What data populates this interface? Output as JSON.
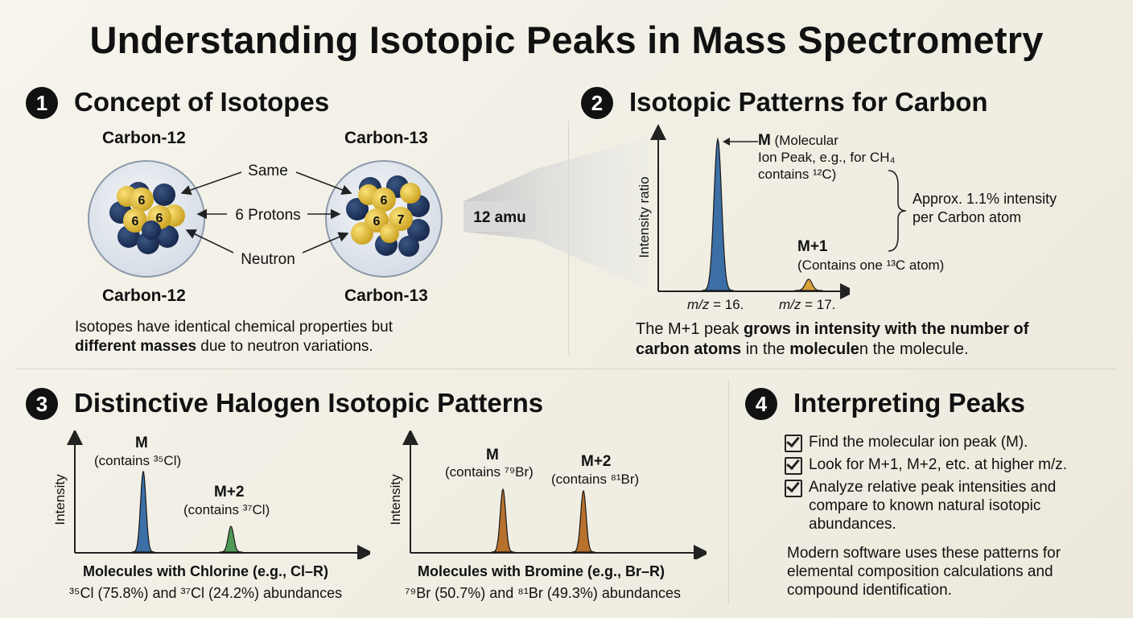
{
  "title": "Understanding Isotopic Peaks in Mass Spectrometry",
  "sections": {
    "concept": {
      "number": "1",
      "title": "Concept of Isotopes",
      "atom_left_top": "Carbon-12",
      "atom_right_top": "Carbon-13",
      "atom_left_bottom": "Carbon-12",
      "atom_right_bottom": "Carbon-13",
      "label_same": "Same",
      "label_protons": "6 Protons",
      "label_neutron": "Neutron",
      "nucleus_left": [
        "6",
        "6",
        "6"
      ],
      "nucleus_right": [
        "6",
        "6",
        "7"
      ],
      "caption_line1": "Isotopes have identical chemical properties but",
      "caption_bold": "different masses",
      "caption_line2_rest": " due to neutron variations."
    },
    "carbon": {
      "number": "2",
      "title": "Isotopic Patterns for Carbon",
      "zoom_label": "12 amu",
      "ylabel": "Intensity ratio",
      "m_label": "M",
      "m_desc1": " (Molecular",
      "m_desc2": "Ion Peak, e.g., for CH₄",
      "m_desc3": "contains ¹²C)",
      "approx1": "Approx. 1.1% intensity",
      "approx2": "per Carbon atom",
      "m1_label": "M+1",
      "m1_desc": "(Contains one ¹³C atom)",
      "tick1_mz": "m/z",
      "tick1_val": " = 16.",
      "tick2_mz": "m/z",
      "tick2_val": " = 17.",
      "caption_a": "The M+1 peak ",
      "caption_b": "grows in intensity with the number of",
      "caption_c": "carbon atoms",
      "caption_d": " in the ",
      "caption_e": "molecule",
      "caption_f": "n the molecule."
    },
    "halogen": {
      "number": "3",
      "title": "Distinctive Halogen Isotopic Patterns",
      "chlorine": {
        "ylabel": "Intensity",
        "m_label": "M",
        "m_desc": "(contains ³⁵Cl)",
        "m2_label": "M+2",
        "m2_desc": "(contains ³⁷Cl)",
        "caption_bold": "Molecules with Chlorine (e.g., Cl–R)",
        "caption": "³⁵Cl (75.8%) and ³⁷Cl (24.2%) abundances"
      },
      "bromine": {
        "ylabel": "Intensity",
        "m_label": "M",
        "m_desc": "(contains ⁷⁹Br)",
        "m2_label": "M+2",
        "m2_desc": "(contains ⁸¹Br)",
        "caption_bold": "Molecules with Bromine (e.g., Br–R)",
        "caption": "⁷⁹Br (50.7%) and ⁸¹Br (49.3%) abundances"
      }
    },
    "interpreting": {
      "number": "4",
      "title": "Interpreting Peaks",
      "items": [
        "Find the molecular ion peak (M).",
        "Look for M+1, M+2, etc. at higher m/z.",
        "Analyze relative peak intensities and compare to known natural isotopic abundances."
      ],
      "footer": "Modern software uses these patterns for elemental composition calculations and compound identification."
    }
  },
  "colors": {
    "proton": "#e9c43a",
    "neutron": "#23395f",
    "blue_peak": "#3b6fa6",
    "green_peak": "#4f9a55",
    "orange_peak": "#b8702d",
    "gold_peak": "#d8a23a"
  },
  "chart_data": [
    {
      "type": "line",
      "title": "Isotopic Patterns for Carbon",
      "ylabel": "Intensity ratio",
      "series": [
        {
          "name": "",
          "x": [
            16,
            17
          ],
          "y": [
            100,
            1.1
          ]
        }
      ],
      "x_tick_labels": [
        "m/z = 16.",
        "m/z = 17."
      ]
    },
    {
      "type": "line",
      "title": "Molecules with Chlorine (e.g., Cl–R)",
      "ylabel": "Intensity",
      "categories": [
        "M",
        "M+2"
      ],
      "values": [
        75.8,
        24.2
      ]
    },
    {
      "type": "line",
      "title": "Molecules with Bromine (e.g., Br–R)",
      "ylabel": "Intensity",
      "categories": [
        "M",
        "M+2"
      ],
      "values": [
        50.7,
        49.3
      ]
    }
  ]
}
